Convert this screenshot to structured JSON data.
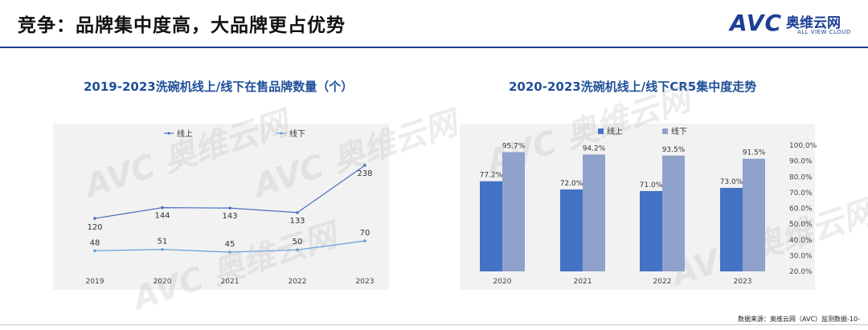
{
  "header": {
    "title": "竞争：品牌集中度高，大品牌更占优势",
    "logo_text": "AVC",
    "logo_cn": "奥维云网",
    "logo_en": "ALL VIEW CLOUD"
  },
  "footer": {
    "source": "数据来源：奥维云网（AVC）监测数据-10-"
  },
  "chart_data": [
    {
      "type": "line",
      "title": "2019-2023洗碗机线上/线下在售品牌数量（个）",
      "x": [
        "2019",
        "2020",
        "2021",
        "2022",
        "2023"
      ],
      "series": [
        {
          "name": "线上",
          "values": [
            120,
            144,
            143,
            133,
            238
          ],
          "color": "#4a6fc1"
        },
        {
          "name": "线下",
          "values": [
            48,
            51,
            45,
            50,
            70
          ],
          "color": "#6a9fd8"
        }
      ],
      "legend": "top",
      "grid": false
    },
    {
      "type": "bar",
      "title": "2020-2023洗碗机线上/线下CR5集中度走势",
      "categories": [
        "2020",
        "2021",
        "2022",
        "2023"
      ],
      "series": [
        {
          "name": "线上",
          "values": [
            77.2,
            72.0,
            71.0,
            73.0
          ],
          "color": "#4472c4",
          "labels": [
            "77.2%",
            "72.0%",
            "71.0%",
            "73.0%"
          ]
        },
        {
          "name": "线下",
          "values": [
            95.7,
            94.2,
            93.5,
            91.5
          ],
          "color": "#8fa2cc",
          "labels": [
            "95.7%",
            "94.2%",
            "93.5%",
            "91.5%"
          ]
        }
      ],
      "ylim": [
        20,
        100
      ],
      "yticks": [
        "100.0%",
        "90.0%",
        "80.0%",
        "70.0%",
        "60.0%",
        "50.0%",
        "40.0%",
        "30.0%",
        "20.0%"
      ],
      "yaxis": "right",
      "legend": "top",
      "grid": false
    }
  ]
}
